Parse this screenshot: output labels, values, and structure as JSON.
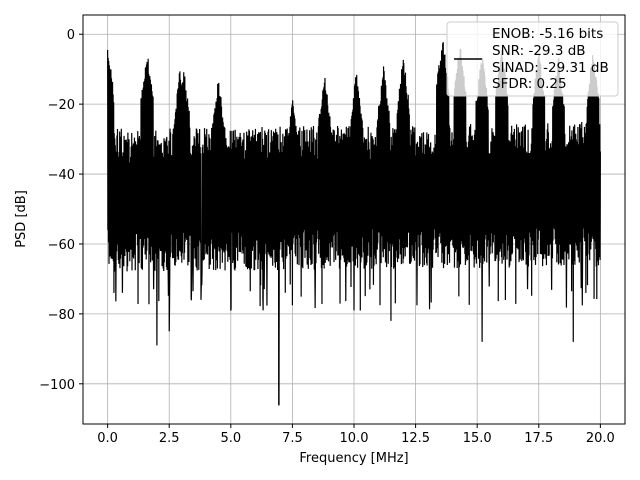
{
  "chart_data": {
    "type": "line",
    "title": "",
    "xlabel": "Frequency [MHz]",
    "ylabel": "PSD [dB]",
    "xlim": [
      -1.0,
      21.0
    ],
    "ylim": [
      -111.5,
      5.5
    ],
    "xticks": [
      0.0,
      2.5,
      5.0,
      7.5,
      10.0,
      12.5,
      15.0,
      17.5,
      20.0
    ],
    "xtick_labels": [
      "0.0",
      "2.5",
      "5.0",
      "7.5",
      "10.0",
      "12.5",
      "15.0",
      "17.5",
      "20.0"
    ],
    "yticks": [
      0,
      -20,
      -40,
      -60,
      -80,
      -100
    ],
    "ytick_labels": [
      "0",
      "−20",
      "−40",
      "−60",
      "−80",
      "−100"
    ],
    "grid": true,
    "legend": {
      "location": "top-right",
      "entries": [
        "ENOB: -5.16 bits",
        "SNR: -29.3 dB",
        "SINAD: -29.31 dB",
        "SFDR: 0.25"
      ]
    },
    "series": [
      {
        "color": "#000000",
        "x_range": [
          0.0,
          20.0
        ],
        "floor_upper_db": -27,
        "floor_lower_db": -68,
        "peaks": [
          {
            "x": 0.0,
            "y": -2
          },
          {
            "x": 1.6,
            "y": -4
          },
          {
            "x": 2.95,
            "y": -9
          },
          {
            "x": 3.1,
            "y": -10
          },
          {
            "x": 4.5,
            "y": -12
          },
          {
            "x": 7.5,
            "y": -18
          },
          {
            "x": 8.8,
            "y": -11
          },
          {
            "x": 10.1,
            "y": -10
          },
          {
            "x": 11.2,
            "y": -9
          },
          {
            "x": 12.0,
            "y": -6
          },
          {
            "x": 13.6,
            "y": 0
          },
          {
            "x": 14.3,
            "y": -2
          },
          {
            "x": 15.2,
            "y": -5
          },
          {
            "x": 16.0,
            "y": -3
          },
          {
            "x": 17.5,
            "y": -4
          },
          {
            "x": 18.3,
            "y": -6
          },
          {
            "x": 19.7,
            "y": -4
          }
        ],
        "dips": [
          {
            "x": 2.0,
            "y": -89
          },
          {
            "x": 2.5,
            "y": -85
          },
          {
            "x": 6.95,
            "y": -106
          },
          {
            "x": 10.0,
            "y": -79
          },
          {
            "x": 11.5,
            "y": -82
          },
          {
            "x": 15.2,
            "y": -88
          },
          {
            "x": 18.9,
            "y": -88
          }
        ]
      }
    ]
  }
}
